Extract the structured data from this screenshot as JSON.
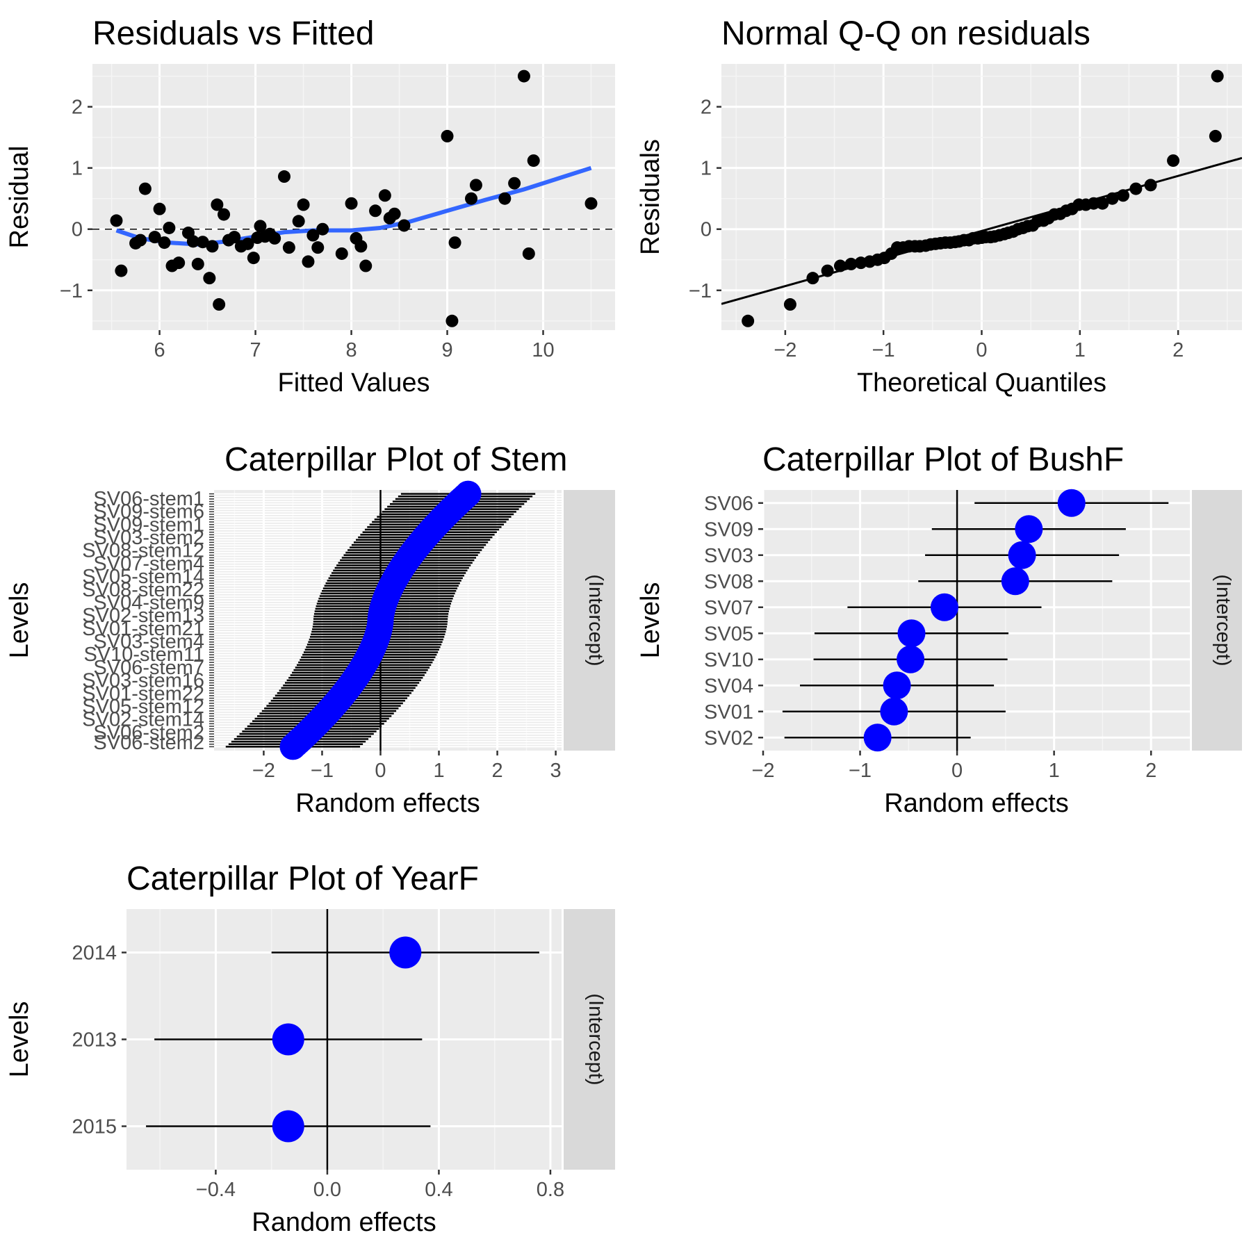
{
  "chart_data": [
    {
      "id": "resid",
      "type": "scatter",
      "title": "Residuals vs Fitted",
      "xlabel": "Fitted Values",
      "ylabel": "Residual",
      "xlim": [
        5.3,
        10.75
      ],
      "ylim": [
        -1.65,
        2.7
      ],
      "xticks": [
        6,
        7,
        8,
        9,
        10
      ],
      "yticks": [
        -1,
        0,
        1,
        2
      ],
      "grid": true,
      "reference_line": {
        "y": 0,
        "style": "dashed"
      },
      "points": [
        [
          5.55,
          0.14
        ],
        [
          5.6,
          -0.68
        ],
        [
          5.75,
          -0.23
        ],
        [
          5.8,
          -0.18
        ],
        [
          5.85,
          0.66
        ],
        [
          5.95,
          -0.13
        ],
        [
          6.0,
          0.33
        ],
        [
          6.05,
          -0.22
        ],
        [
          6.1,
          0.02
        ],
        [
          6.13,
          -0.6
        ],
        [
          6.2,
          -0.55
        ],
        [
          6.3,
          -0.06
        ],
        [
          6.35,
          -0.2
        ],
        [
          6.4,
          -0.57
        ],
        [
          6.45,
          -0.21
        ],
        [
          6.52,
          -0.8
        ],
        [
          6.55,
          -0.28
        ],
        [
          6.6,
          0.4
        ],
        [
          6.62,
          -1.23
        ],
        [
          6.67,
          0.24
        ],
        [
          6.72,
          -0.18
        ],
        [
          6.78,
          -0.13
        ],
        [
          6.85,
          -0.28
        ],
        [
          6.92,
          -0.24
        ],
        [
          6.98,
          -0.47
        ],
        [
          7.02,
          -0.14
        ],
        [
          7.05,
          0.05
        ],
        [
          7.1,
          -0.12
        ],
        [
          7.15,
          -0.08
        ],
        [
          7.2,
          -0.15
        ],
        [
          7.3,
          0.86
        ],
        [
          7.35,
          -0.3
        ],
        [
          7.45,
          0.13
        ],
        [
          7.5,
          0.4
        ],
        [
          7.55,
          -0.53
        ],
        [
          7.6,
          -0.1
        ],
        [
          7.65,
          -0.3
        ],
        [
          7.7,
          0.0
        ],
        [
          7.9,
          -0.4
        ],
        [
          8.0,
          0.42
        ],
        [
          8.05,
          -0.15
        ],
        [
          8.1,
          -0.28
        ],
        [
          8.15,
          -0.6
        ],
        [
          8.25,
          0.3
        ],
        [
          8.35,
          0.55
        ],
        [
          8.4,
          0.18
        ],
        [
          8.45,
          0.25
        ],
        [
          8.55,
          0.06
        ],
        [
          9.0,
          1.52
        ],
        [
          9.05,
          -1.5
        ],
        [
          9.08,
          -0.22
        ],
        [
          9.25,
          0.5
        ],
        [
          9.3,
          0.72
        ],
        [
          9.6,
          0.5
        ],
        [
          9.7,
          0.75
        ],
        [
          9.8,
          2.5
        ],
        [
          9.85,
          -0.4
        ],
        [
          9.9,
          1.12
        ],
        [
          10.5,
          0.42
        ]
      ],
      "smooth": [
        [
          5.55,
          -0.02
        ],
        [
          5.8,
          -0.15
        ],
        [
          6.1,
          -0.22
        ],
        [
          6.4,
          -0.25
        ],
        [
          6.7,
          -0.2
        ],
        [
          7.0,
          -0.12
        ],
        [
          7.3,
          -0.05
        ],
        [
          7.6,
          -0.02
        ],
        [
          8.0,
          -0.02
        ],
        [
          8.3,
          0.02
        ],
        [
          8.6,
          0.12
        ],
        [
          9.0,
          0.3
        ],
        [
          9.4,
          0.48
        ],
        [
          9.8,
          0.65
        ],
        [
          10.2,
          0.85
        ],
        [
          10.5,
          1.0
        ]
      ]
    },
    {
      "id": "qq",
      "type": "scatter",
      "title": "Normal Q-Q on residuals",
      "xlabel": "Theoretical Quantiles",
      "ylabel": "Residuals",
      "xlim": [
        -2.65,
        2.65
      ],
      "ylim": [
        -1.65,
        2.7
      ],
      "xticks": [
        -2,
        -1,
        0,
        1,
        2
      ],
      "yticks": [
        -1,
        0,
        1,
        2
      ],
      "grid": true,
      "reference_line": {
        "intercept": -0.03,
        "slope": 0.45
      },
      "points": [
        [
          -2.38,
          -1.5
        ],
        [
          -1.95,
          -1.23
        ],
        [
          -1.72,
          -0.8
        ],
        [
          -1.57,
          -0.68
        ],
        [
          -1.44,
          -0.6
        ],
        [
          -1.33,
          -0.57
        ],
        [
          -1.23,
          -0.55
        ],
        [
          -1.14,
          -0.53
        ],
        [
          -1.06,
          -0.5
        ],
        [
          -0.99,
          -0.47
        ],
        [
          -0.92,
          -0.4
        ],
        [
          -0.86,
          -0.3
        ],
        [
          -0.8,
          -0.3
        ],
        [
          -0.74,
          -0.28
        ],
        [
          -0.68,
          -0.28
        ],
        [
          -0.63,
          -0.28
        ],
        [
          -0.57,
          -0.27
        ],
        [
          -0.52,
          -0.25
        ],
        [
          -0.47,
          -0.24
        ],
        [
          -0.42,
          -0.23
        ],
        [
          -0.37,
          -0.22
        ],
        [
          -0.32,
          -0.22
        ],
        [
          -0.27,
          -0.21
        ],
        [
          -0.23,
          -0.2
        ],
        [
          -0.18,
          -0.18
        ],
        [
          -0.13,
          -0.18
        ],
        [
          -0.09,
          -0.15
        ],
        [
          -0.04,
          -0.15
        ],
        [
          0.0,
          -0.14
        ],
        [
          0.04,
          -0.13
        ],
        [
          0.09,
          -0.13
        ],
        [
          0.13,
          -0.12
        ],
        [
          0.18,
          -0.1
        ],
        [
          0.23,
          -0.08
        ],
        [
          0.27,
          -0.06
        ],
        [
          0.32,
          -0.04
        ],
        [
          0.37,
          0.0
        ],
        [
          0.42,
          0.02
        ],
        [
          0.47,
          0.05
        ],
        [
          0.52,
          0.06
        ],
        [
          0.57,
          0.13
        ],
        [
          0.63,
          0.14
        ],
        [
          0.68,
          0.18
        ],
        [
          0.74,
          0.24
        ],
        [
          0.8,
          0.25
        ],
        [
          0.86,
          0.3
        ],
        [
          0.92,
          0.33
        ],
        [
          0.99,
          0.4
        ],
        [
          1.06,
          0.4
        ],
        [
          1.14,
          0.42
        ],
        [
          1.23,
          0.42
        ],
        [
          1.33,
          0.5
        ],
        [
          1.44,
          0.55
        ],
        [
          1.57,
          0.66
        ],
        [
          1.72,
          0.72
        ],
        [
          1.95,
          1.12
        ],
        [
          2.38,
          1.52
        ],
        [
          2.4,
          2.5
        ]
      ]
    },
    {
      "id": "stem",
      "type": "caterpillar",
      "title": "Caterpillar Plot of  Stem",
      "xlabel": "Random effects",
      "ylabel": "Levels",
      "strip": "(Intercept)",
      "xlim": [
        -2.85,
        3.1
      ],
      "xticks": [
        -2,
        -1,
        0,
        1,
        2,
        3
      ],
      "levels_top": [
        "SV06-stem1",
        "SV09-stem6",
        "SV09-stem1",
        "SV03-stem2",
        "SV08-stem12",
        "SV07-stem4",
        "SV05-stem14",
        "SV08-stem22",
        "SV04-stem9",
        "SV02-stem13",
        "SV01-stem21",
        "SV03-stem4",
        "SV10-stem11",
        "SV06-stem7",
        "SV03-stem16",
        "SV01-stem22",
        "SV05-stem12",
        "SV02-stem14",
        "SV06-stem2"
      ],
      "levels_bottom": "SV06-stem2",
      "n_levels": 100,
      "estimate_range": [
        -1.5,
        1.5
      ],
      "interval_halfwidth": 1.15
    },
    {
      "id": "bush",
      "type": "caterpillar",
      "title": "Caterpillar Plot of  BushF",
      "xlabel": "Random effects",
      "ylabel": "Levels",
      "strip": "(Intercept)",
      "xlim": [
        -2.0,
        2.4
      ],
      "xticks": [
        -2,
        -1,
        0,
        1,
        2
      ],
      "levels": [
        {
          "name": "SV06",
          "est": 1.18,
          "lo": 0.18,
          "hi": 2.18
        },
        {
          "name": "SV09",
          "est": 0.74,
          "lo": -0.26,
          "hi": 1.74
        },
        {
          "name": "SV03",
          "est": 0.67,
          "lo": -0.33,
          "hi": 1.67
        },
        {
          "name": "SV08",
          "est": 0.6,
          "lo": -0.4,
          "hi": 1.6
        },
        {
          "name": "SV07",
          "est": -0.13,
          "lo": -1.13,
          "hi": 0.87
        },
        {
          "name": "SV05",
          "est": -0.47,
          "lo": -1.47,
          "hi": 0.53
        },
        {
          "name": "SV10",
          "est": -0.48,
          "lo": -1.48,
          "hi": 0.52
        },
        {
          "name": "SV04",
          "est": -0.62,
          "lo": -1.62,
          "hi": 0.38
        },
        {
          "name": "SV01",
          "est": -0.65,
          "lo": -1.8,
          "hi": 0.5
        },
        {
          "name": "SV02",
          "est": -0.82,
          "lo": -1.78,
          "hi": 0.14
        }
      ]
    },
    {
      "id": "year",
      "type": "caterpillar",
      "title": "Caterpillar Plot of  YearF",
      "xlabel": "Random effects",
      "ylabel": "Levels",
      "strip": "(Intercept)",
      "xlim": [
        -0.72,
        0.84
      ],
      "xticks": [
        -0.4,
        0.0,
        0.4,
        0.8
      ],
      "xtick_labels": [
        "-0.4",
        "0.0",
        "0.4",
        "0.8"
      ],
      "levels": [
        {
          "name": "2014",
          "est": 0.28,
          "lo": -0.2,
          "hi": 0.76
        },
        {
          "name": "2013",
          "est": -0.14,
          "lo": -0.62,
          "hi": 0.34
        },
        {
          "name": "2015",
          "est": -0.14,
          "lo": -0.65,
          "hi": 0.37
        }
      ]
    }
  ]
}
